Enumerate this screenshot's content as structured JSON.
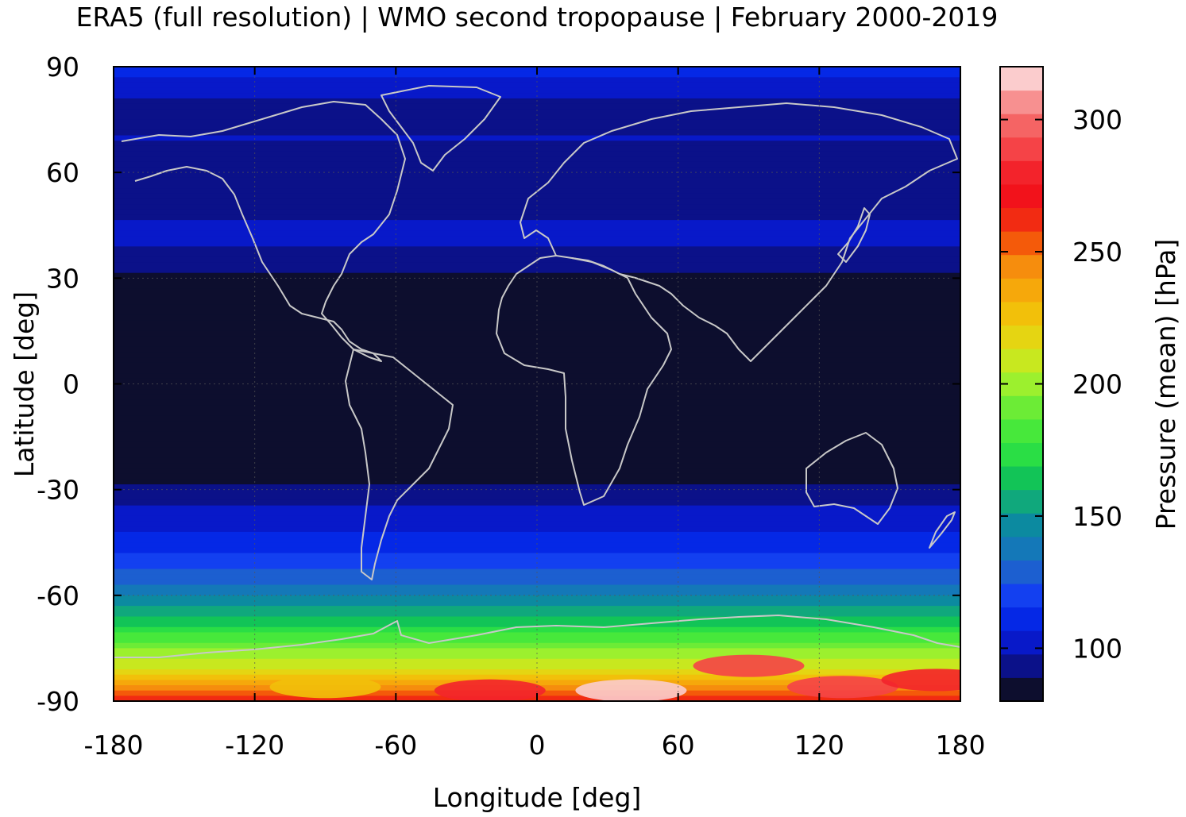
{
  "chart_data": {
    "type": "heatmap",
    "title": "ERA5 (full resolution) | WMO second tropopause | February 2000-2019",
    "xlabel": "Longitude [deg]",
    "ylabel": "Latitude [deg]",
    "colorbar_label": "Pressure (mean) [hPa]",
    "xlim": [
      -180,
      180
    ],
    "ylim": [
      -90,
      90
    ],
    "xticks": [
      -180,
      -120,
      -60,
      0,
      60,
      120,
      180
    ],
    "yticks": [
      90,
      60,
      30,
      0,
      -30,
      -60,
      -90
    ],
    "colorbar_range": [
      80,
      320
    ],
    "colorbar_ticks": [
      100,
      150,
      200,
      250,
      300
    ],
    "grid": true,
    "colormap": [
      "#0d0e2e",
      "#0b1189",
      "#0819c9",
      "#0528e6",
      "#1340f0",
      "#1c5fd0",
      "#1478b8",
      "#0c8aa0",
      "#10a87c",
      "#12c457",
      "#2ade45",
      "#47e83b",
      "#6cec36",
      "#9cf02e",
      "#c8e81f",
      "#e5d512",
      "#f2c00a",
      "#f6a80b",
      "#f68d0d",
      "#f45a0a",
      "#f22b12",
      "#f2121b",
      "#f3232b",
      "#f54347",
      "#f56464",
      "#f79090",
      "#fbcccd"
    ],
    "latitude_band_means": [
      {
        "lat": 90,
        "value": 112
      },
      {
        "lat": 80,
        "value": 96
      },
      {
        "lat": 70,
        "value": 98
      },
      {
        "lat": 60,
        "value": 95
      },
      {
        "lat": 50,
        "value": 97
      },
      {
        "lat": 40,
        "value": 99
      },
      {
        "lat": 30,
        "value": 88
      },
      {
        "lat": 20,
        "value": 84
      },
      {
        "lat": 10,
        "value": 84
      },
      {
        "lat": 0,
        "value": 84
      },
      {
        "lat": -10,
        "value": 84
      },
      {
        "lat": -20,
        "value": 84
      },
      {
        "lat": -30,
        "value": 90
      },
      {
        "lat": -35,
        "value": 100
      },
      {
        "lat": -45,
        "value": 110
      },
      {
        "lat": -55,
        "value": 130
      },
      {
        "lat": -60,
        "value": 140
      },
      {
        "lat": -65,
        "value": 155
      },
      {
        "lat": -70,
        "value": 175
      },
      {
        "lat": -75,
        "value": 195
      },
      {
        "lat": -80,
        "value": 210
      },
      {
        "lat": -85,
        "value": 235
      },
      {
        "lat": -90,
        "value": 270
      }
    ],
    "antarctic_features": [
      {
        "lon": -90,
        "lat": -86,
        "value": 225
      },
      {
        "lon": -20,
        "lat": -87,
        "value": 280
      },
      {
        "lon": 40,
        "lat": -87,
        "value": 315
      },
      {
        "lon": 90,
        "lat": -80,
        "value": 290
      },
      {
        "lon": 130,
        "lat": -86,
        "value": 290
      },
      {
        "lon": 170,
        "lat": -84,
        "value": 280
      }
    ]
  }
}
